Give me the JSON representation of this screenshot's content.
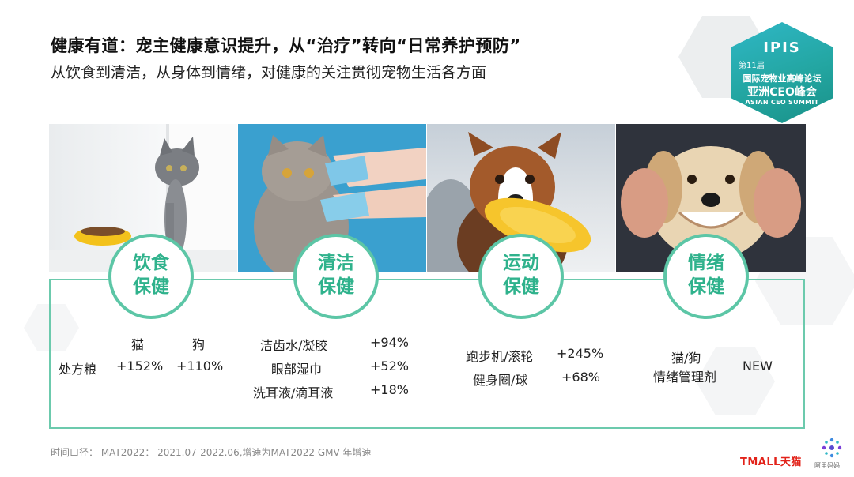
{
  "header": {
    "title": "健康有道：宠主健康意识提升，从“治疗”转向“日常养护预防”",
    "subtitle": "从饮食到清洁，从身体到情绪，对健康的关注贯彻宠物生活各方面"
  },
  "logo": {
    "brand": "IPIS",
    "edition": "第11届",
    "line1": "国际宠物业高峰论坛",
    "line2": "亚洲CEO峰会",
    "line3": "ASIAN CEO SUMMIT"
  },
  "sections": [
    {
      "label_line1": "饮食",
      "label_line2": "保健",
      "col_cat": "猫",
      "col_dog": "狗",
      "row_label": "处方粮",
      "cat_value": "+152%",
      "dog_value": "+110%"
    },
    {
      "label_line1": "清洁",
      "label_line2": "保健",
      "items": [
        {
          "name": "洁齿水/凝胶",
          "value": "+94%"
        },
        {
          "name": "眼部湿巾",
          "value": "+52%"
        },
        {
          "name": "洗耳液/滴耳液",
          "value": "+18%"
        }
      ]
    },
    {
      "label_line1": "运动",
      "label_line2": "保健",
      "items": [
        {
          "name": "跑步机/滚轮",
          "value": "+245%"
        },
        {
          "name": "健身圈/球",
          "value": "+68%"
        }
      ]
    },
    {
      "label_line1": "情绪",
      "label_line2": "保健",
      "name_line1": "猫/狗",
      "name_line2": "情绪管理剂",
      "value": "NEW"
    }
  ],
  "footer": {
    "note": "时间口径： MAT2022： 2021.07-2022.06,增速为MAT2022 GMV 年增速",
    "tmall": "TMALL天猫",
    "ant_label": "阿里妈妈"
  },
  "colors": {
    "accent_green": "#2fb28c",
    "frame_green": "#6ccaad",
    "logo_teal": "#23a6a2",
    "tmall_red": "#e2231a"
  }
}
